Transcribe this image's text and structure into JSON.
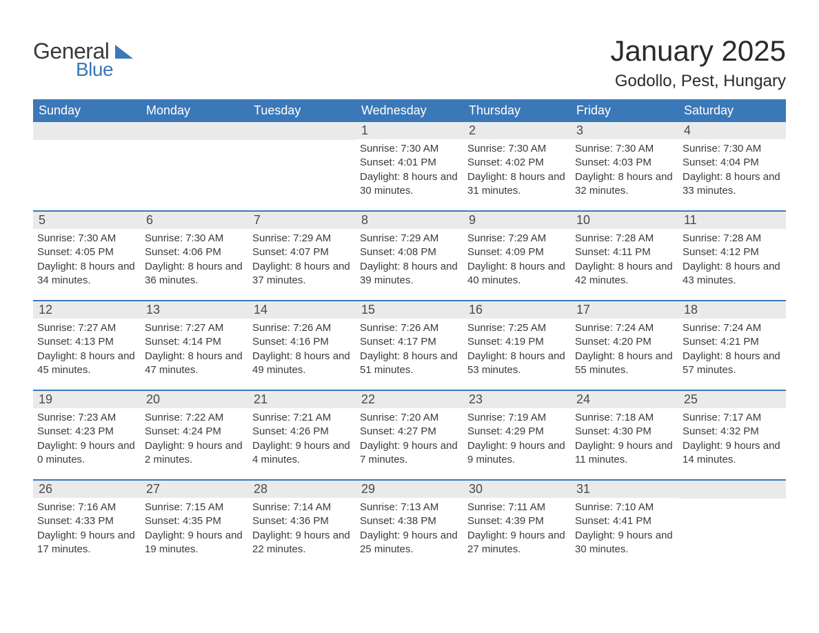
{
  "logo": {
    "text1": "General",
    "text2": "Blue"
  },
  "title": "January 2025",
  "location": "Godollo, Pest, Hungary",
  "colors": {
    "header_bg": "#3b78b8",
    "header_text": "#ffffff",
    "daynum_bg": "#eaeaea",
    "row_border": "#3b78b8",
    "body_text": "#3a3a3a",
    "page_bg": "#ffffff"
  },
  "weekdays": [
    "Sunday",
    "Monday",
    "Tuesday",
    "Wednesday",
    "Thursday",
    "Friday",
    "Saturday"
  ],
  "weeks": [
    [
      null,
      null,
      null,
      {
        "n": "1",
        "sunrise": "7:30 AM",
        "sunset": "4:01 PM",
        "daylight": "8 hours and 30 minutes."
      },
      {
        "n": "2",
        "sunrise": "7:30 AM",
        "sunset": "4:02 PM",
        "daylight": "8 hours and 31 minutes."
      },
      {
        "n": "3",
        "sunrise": "7:30 AM",
        "sunset": "4:03 PM",
        "daylight": "8 hours and 32 minutes."
      },
      {
        "n": "4",
        "sunrise": "7:30 AM",
        "sunset": "4:04 PM",
        "daylight": "8 hours and 33 minutes."
      }
    ],
    [
      {
        "n": "5",
        "sunrise": "7:30 AM",
        "sunset": "4:05 PM",
        "daylight": "8 hours and 34 minutes."
      },
      {
        "n": "6",
        "sunrise": "7:30 AM",
        "sunset": "4:06 PM",
        "daylight": "8 hours and 36 minutes."
      },
      {
        "n": "7",
        "sunrise": "7:29 AM",
        "sunset": "4:07 PM",
        "daylight": "8 hours and 37 minutes."
      },
      {
        "n": "8",
        "sunrise": "7:29 AM",
        "sunset": "4:08 PM",
        "daylight": "8 hours and 39 minutes."
      },
      {
        "n": "9",
        "sunrise": "7:29 AM",
        "sunset": "4:09 PM",
        "daylight": "8 hours and 40 minutes."
      },
      {
        "n": "10",
        "sunrise": "7:28 AM",
        "sunset": "4:11 PM",
        "daylight": "8 hours and 42 minutes."
      },
      {
        "n": "11",
        "sunrise": "7:28 AM",
        "sunset": "4:12 PM",
        "daylight": "8 hours and 43 minutes."
      }
    ],
    [
      {
        "n": "12",
        "sunrise": "7:27 AM",
        "sunset": "4:13 PM",
        "daylight": "8 hours and 45 minutes."
      },
      {
        "n": "13",
        "sunrise": "7:27 AM",
        "sunset": "4:14 PM",
        "daylight": "8 hours and 47 minutes."
      },
      {
        "n": "14",
        "sunrise": "7:26 AM",
        "sunset": "4:16 PM",
        "daylight": "8 hours and 49 minutes."
      },
      {
        "n": "15",
        "sunrise": "7:26 AM",
        "sunset": "4:17 PM",
        "daylight": "8 hours and 51 minutes."
      },
      {
        "n": "16",
        "sunrise": "7:25 AM",
        "sunset": "4:19 PM",
        "daylight": "8 hours and 53 minutes."
      },
      {
        "n": "17",
        "sunrise": "7:24 AM",
        "sunset": "4:20 PM",
        "daylight": "8 hours and 55 minutes."
      },
      {
        "n": "18",
        "sunrise": "7:24 AM",
        "sunset": "4:21 PM",
        "daylight": "8 hours and 57 minutes."
      }
    ],
    [
      {
        "n": "19",
        "sunrise": "7:23 AM",
        "sunset": "4:23 PM",
        "daylight": "9 hours and 0 minutes."
      },
      {
        "n": "20",
        "sunrise": "7:22 AM",
        "sunset": "4:24 PM",
        "daylight": "9 hours and 2 minutes."
      },
      {
        "n": "21",
        "sunrise": "7:21 AM",
        "sunset": "4:26 PM",
        "daylight": "9 hours and 4 minutes."
      },
      {
        "n": "22",
        "sunrise": "7:20 AM",
        "sunset": "4:27 PM",
        "daylight": "9 hours and 7 minutes."
      },
      {
        "n": "23",
        "sunrise": "7:19 AM",
        "sunset": "4:29 PM",
        "daylight": "9 hours and 9 minutes."
      },
      {
        "n": "24",
        "sunrise": "7:18 AM",
        "sunset": "4:30 PM",
        "daylight": "9 hours and 11 minutes."
      },
      {
        "n": "25",
        "sunrise": "7:17 AM",
        "sunset": "4:32 PM",
        "daylight": "9 hours and 14 minutes."
      }
    ],
    [
      {
        "n": "26",
        "sunrise": "7:16 AM",
        "sunset": "4:33 PM",
        "daylight": "9 hours and 17 minutes."
      },
      {
        "n": "27",
        "sunrise": "7:15 AM",
        "sunset": "4:35 PM",
        "daylight": "9 hours and 19 minutes."
      },
      {
        "n": "28",
        "sunrise": "7:14 AM",
        "sunset": "4:36 PM",
        "daylight": "9 hours and 22 minutes."
      },
      {
        "n": "29",
        "sunrise": "7:13 AM",
        "sunset": "4:38 PM",
        "daylight": "9 hours and 25 minutes."
      },
      {
        "n": "30",
        "sunrise": "7:11 AM",
        "sunset": "4:39 PM",
        "daylight": "9 hours and 27 minutes."
      },
      {
        "n": "31",
        "sunrise": "7:10 AM",
        "sunset": "4:41 PM",
        "daylight": "9 hours and 30 minutes."
      },
      null
    ]
  ],
  "labels": {
    "sunrise": "Sunrise: ",
    "sunset": "Sunset: ",
    "daylight": "Daylight: "
  }
}
